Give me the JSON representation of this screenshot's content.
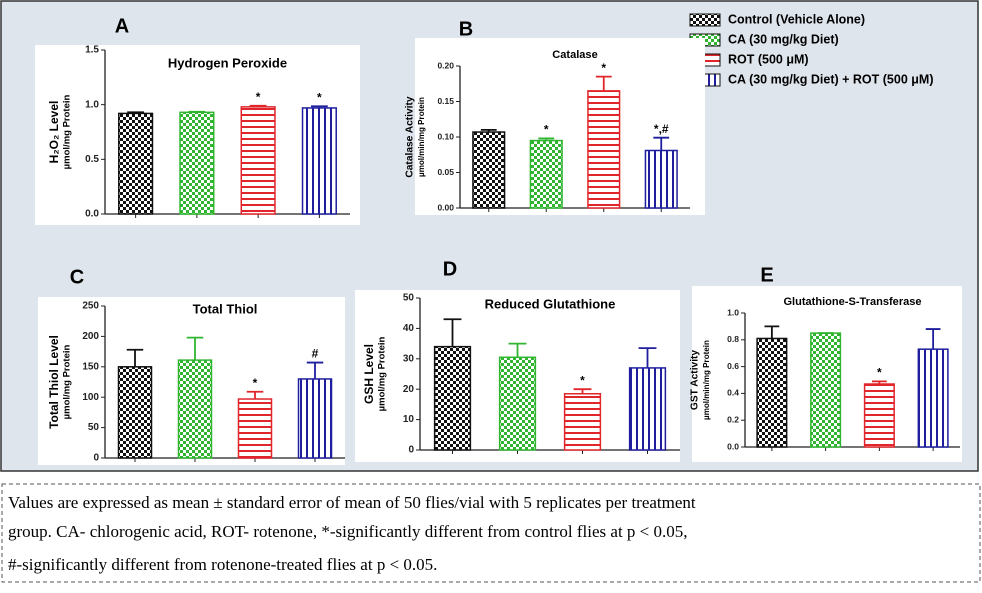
{
  "legend": [
    {
      "name": "Control (Vehicle Alone)",
      "color": "#111111"
    },
    {
      "name": "CA (30 mg/kg Diet)",
      "color": "#2fb52f"
    },
    {
      "name": "ROT (500 μM)",
      "color": "#e0262b"
    },
    {
      "name": "CA (30 mg/kg Diet) + ROT (500 μM)",
      "color": "#1f1f9e"
    }
  ],
  "chart_data": [
    {
      "type": "bar",
      "panel": "A",
      "title": "Hydrogen Peroxide",
      "ylabel": [
        "H₂O₂ Level",
        "µmol/mg Protein"
      ],
      "categories": [
        null,
        null,
        null,
        null
      ],
      "values": [
        0.92,
        0.93,
        0.98,
        0.97
      ],
      "errors": [
        0.01,
        0.005,
        0.01,
        0.015
      ],
      "value_labels": [
        null,
        null,
        "*",
        "*"
      ],
      "ylim": [
        0,
        1.5
      ],
      "yticks": [
        {
          "value": 0,
          "label": "0.0"
        },
        {
          "value": 0.5,
          "label": "0.5"
        },
        {
          "value": 1,
          "label": "1.0"
        },
        {
          "value": 1.5,
          "label": "1.5"
        }
      ]
    },
    {
      "type": "bar",
      "panel": "B",
      "title": "Catalase",
      "ylabel": [
        "Catalase Activity",
        "µmol/min/mg Protein"
      ],
      "categories": [
        null,
        null,
        null,
        null
      ],
      "values": [
        0.107,
        0.095,
        0.165,
        0.081
      ],
      "errors": [
        0.003,
        0.003,
        0.02,
        0.018
      ],
      "value_labels": [
        null,
        "*",
        "*",
        "*,#"
      ],
      "ylim": [
        0,
        0.2
      ],
      "yticks": [
        {
          "value": 0,
          "label": "0.00"
        },
        {
          "value": 0.05,
          "label": "0.05"
        },
        {
          "value": 0.1,
          "label": "0.10"
        },
        {
          "value": 0.15,
          "label": "0.15"
        },
        {
          "value": 0.2,
          "label": "0.20"
        }
      ]
    },
    {
      "type": "bar",
      "panel": "C",
      "title": "Total Thiol",
      "ylabel": [
        "Total Thiol Level",
        "µmol/mg Protein"
      ],
      "categories": [
        null,
        null,
        null,
        null
      ],
      "values": [
        150,
        161,
        97,
        130
      ],
      "errors": [
        28,
        37,
        12,
        27
      ],
      "value_labels": [
        null,
        null,
        "*",
        "#"
      ],
      "ylim": [
        0,
        250
      ],
      "yticks": [
        0,
        50,
        100,
        150,
        200,
        250
      ]
    },
    {
      "type": "bar",
      "panel": "D",
      "title": "Reduced Glutathione",
      "ylabel": [
        "GSH Level",
        "µmol/mg Protein"
      ],
      "categories": [
        null,
        null,
        null,
        null
      ],
      "values": [
        34,
        30.5,
        18.5,
        27
      ],
      "errors": [
        9,
        4.5,
        1.5,
        6.5
      ],
      "value_labels": [
        null,
        null,
        "*",
        null
      ],
      "ylim": [
        0,
        50
      ],
      "yticks": [
        0,
        10,
        20,
        30,
        40,
        50
      ]
    },
    {
      "type": "bar",
      "panel": "E",
      "title": "Glutathione-S-Transferase",
      "ylabel": [
        "GST Activity",
        "µmol/min/mg Protein"
      ],
      "categories": [
        null,
        null,
        null,
        null
      ],
      "values": [
        0.81,
        0.85,
        0.47,
        0.73
      ],
      "errors": [
        0.09,
        0,
        0.02,
        0.15
      ],
      "value_labels": [
        null,
        null,
        "*",
        null
      ],
      "ylim": [
        0,
        1
      ],
      "yticks": [
        {
          "value": 0,
          "label": "0.0"
        },
        {
          "value": 0.2,
          "label": "0.2"
        },
        {
          "value": 0.4,
          "label": "0.4"
        },
        {
          "value": 0.6,
          "label": "0.6"
        },
        {
          "value": 0.8,
          "label": "0.8"
        },
        {
          "value": 1,
          "label": "1.0"
        }
      ]
    }
  ],
  "caption": [
    "Values are expressed as mean ± standard error of mean of 50 flies/vial with 5 replicates per treatment",
    "group. CA- chlorogenic acid, ROT- rotenone, *-significantly different from control flies at p < 0.05,",
    "#-significantly different from rotenone-treated flies at p < 0.05."
  ]
}
